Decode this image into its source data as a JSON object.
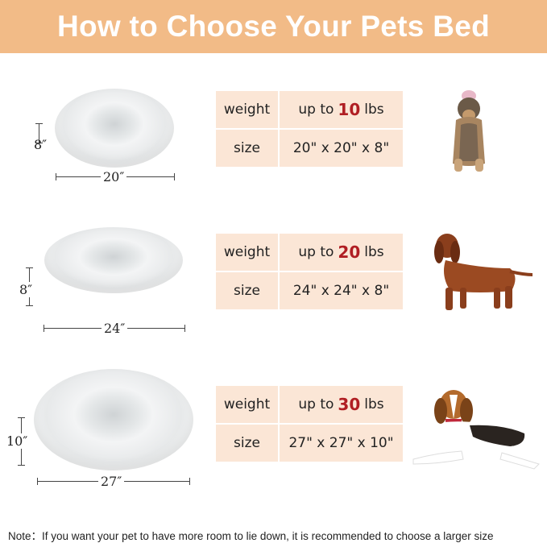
{
  "title": "How to Choose Your Pets Bed",
  "sizes": [
    {
      "weight_label": "weight",
      "weight_prefix": "up to",
      "weight_value": "10",
      "weight_unit": "lbs",
      "size_label": "size",
      "size_value": "20\" x 20\" x 8\"",
      "height_dim": "8″",
      "width_dim": "20″",
      "dog": "yorkshire-terrier"
    },
    {
      "weight_label": "weight",
      "weight_prefix": "up to",
      "weight_value": "20",
      "weight_unit": "lbs",
      "size_label": "size",
      "size_value": "24\" x 24\" x 8\"",
      "height_dim": "8″",
      "width_dim": "24″",
      "dog": "dachshund"
    },
    {
      "weight_label": "weight",
      "weight_prefix": "up to",
      "weight_value": "30",
      "weight_unit": "lbs",
      "size_label": "size",
      "size_value": "27\" x 27\" x 10\"",
      "height_dim": "10″",
      "width_dim": "27″",
      "dog": "beagle"
    }
  ],
  "note": "Note：If you want your pet to have more room to lie down, it is recommended to choose a larger size",
  "colors": {
    "header": "#f2bb87",
    "cell": "#fbe6d6",
    "accent": "#b01e23"
  }
}
